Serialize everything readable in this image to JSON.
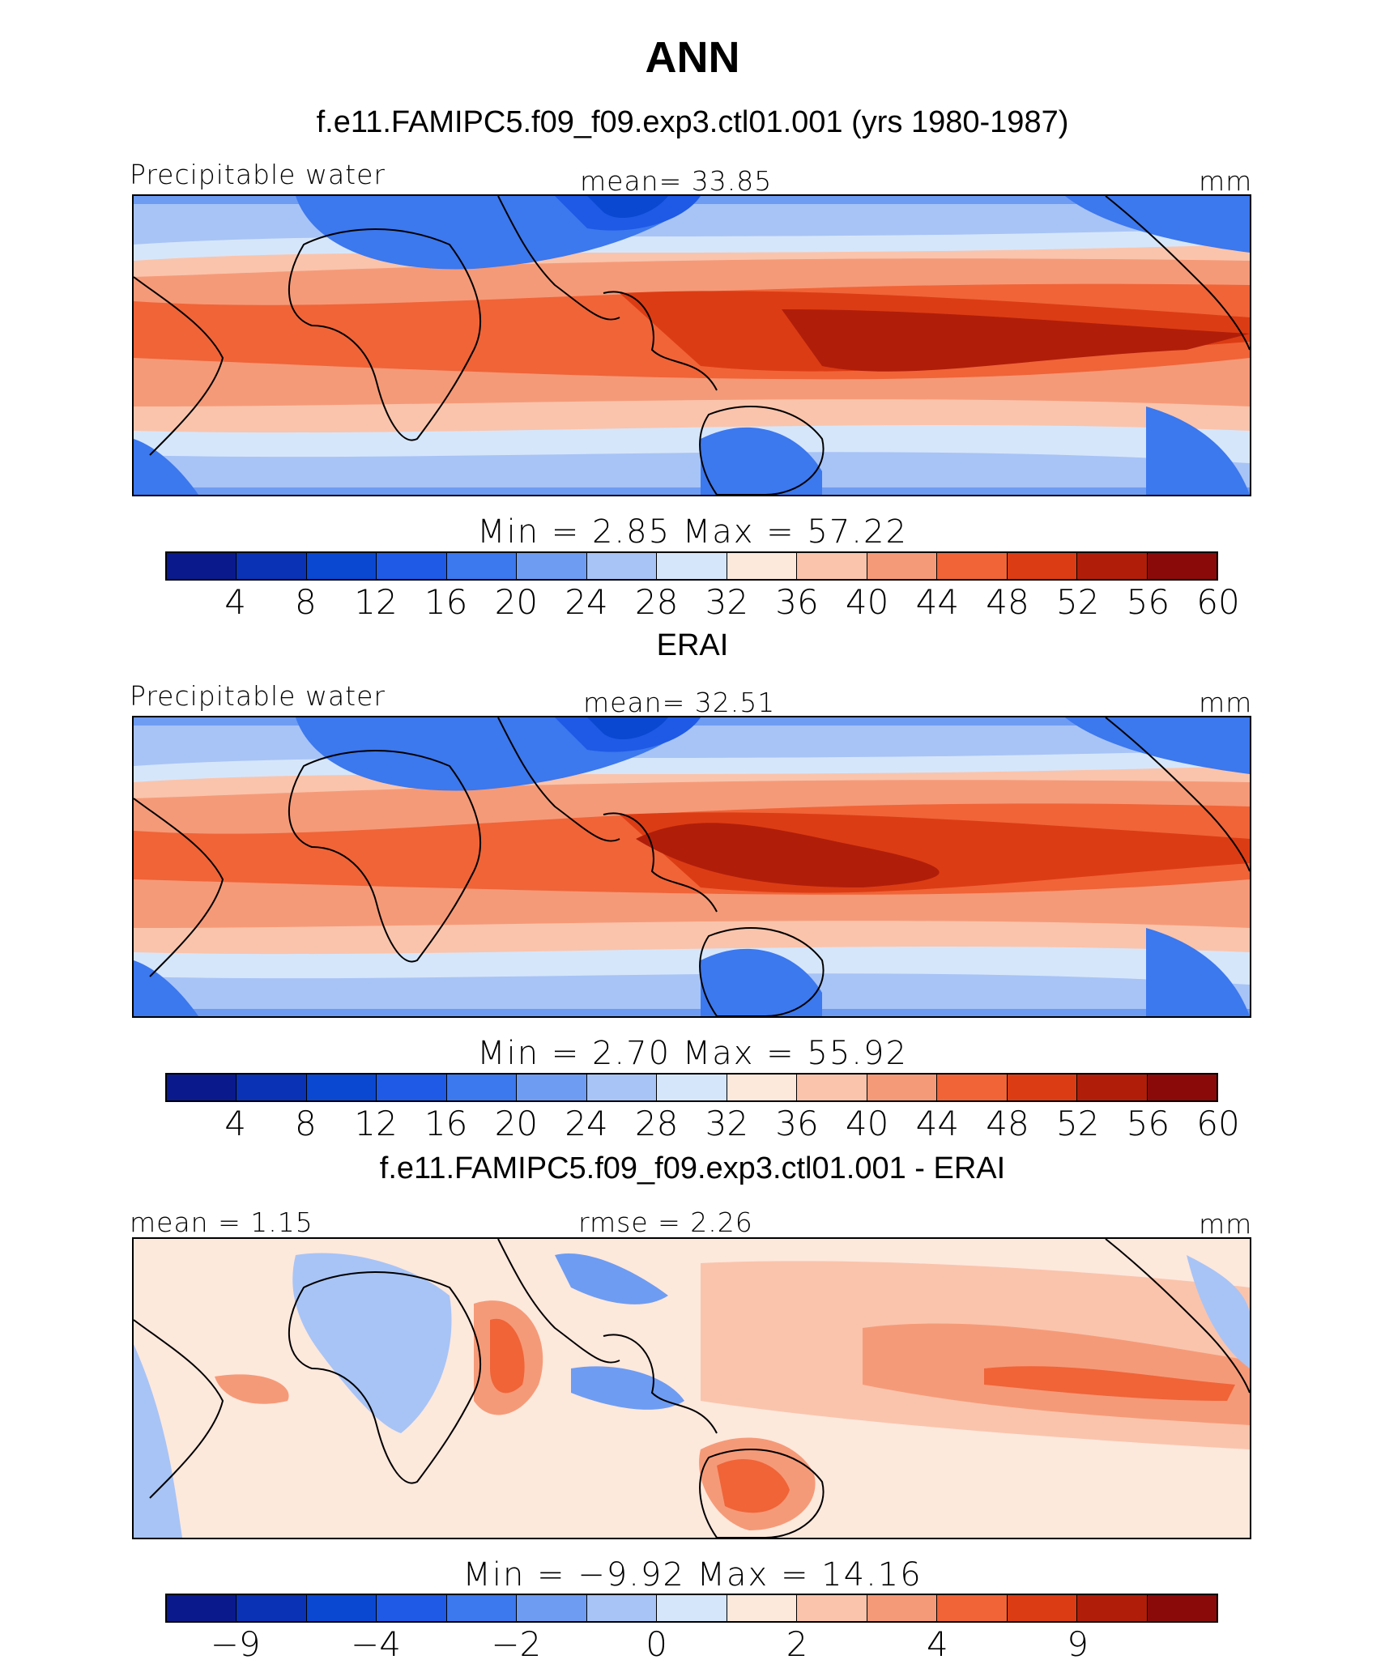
{
  "figure": {
    "title": "ANN"
  },
  "colors": {
    "palette_14": [
      "#0a1a8c",
      "#0a32b4",
      "#0a48d2",
      "#1e5ae6",
      "#3c78ee",
      "#6e9cf2",
      "#a8c4f6",
      "#d6e6fa",
      "#fde8dc",
      "#fac4ac",
      "#f59a78",
      "#f06438",
      "#dc3c14",
      "#b01e0a",
      "#8a0a0a"
    ]
  },
  "panels": [
    {
      "title": "f.e11.FAMIPC5.f09_f09.exp3.ctl01.001 (yrs 1980-1987)",
      "left_label": "Precipitable water",
      "center_label": "mean=   33.85",
      "right_label": "mm",
      "minmax": "Min  =     2.85  Max  =     57.22",
      "colorbar_ticks": [
        "4",
        "8",
        "12",
        "16",
        "20",
        "24",
        "28",
        "32",
        "36",
        "40",
        "44",
        "48",
        "52",
        "56",
        "60"
      ]
    },
    {
      "title": "ERAI",
      "left_label": "Precipitable water",
      "center_label": "mean=   32.51",
      "right_label": "mm",
      "minmax": "Min  =     2.70  Max  =     55.92",
      "colorbar_ticks": [
        "4",
        "8",
        "12",
        "16",
        "20",
        "24",
        "28",
        "32",
        "36",
        "40",
        "44",
        "48",
        "52",
        "56",
        "60"
      ]
    },
    {
      "title": "f.e11.FAMIPC5.f09_f09.exp3.ctl01.001 - ERAI",
      "left_label": "mean =    1.15",
      "center_label": "rmse =    2.26",
      "right_label": "mm",
      "minmax": "Min  =   −9.92  Max  =    14.16",
      "colorbar_ticks": [
        "−9",
        "−4",
        "−2",
        "0",
        "2",
        "4",
        "9"
      ]
    }
  ]
}
